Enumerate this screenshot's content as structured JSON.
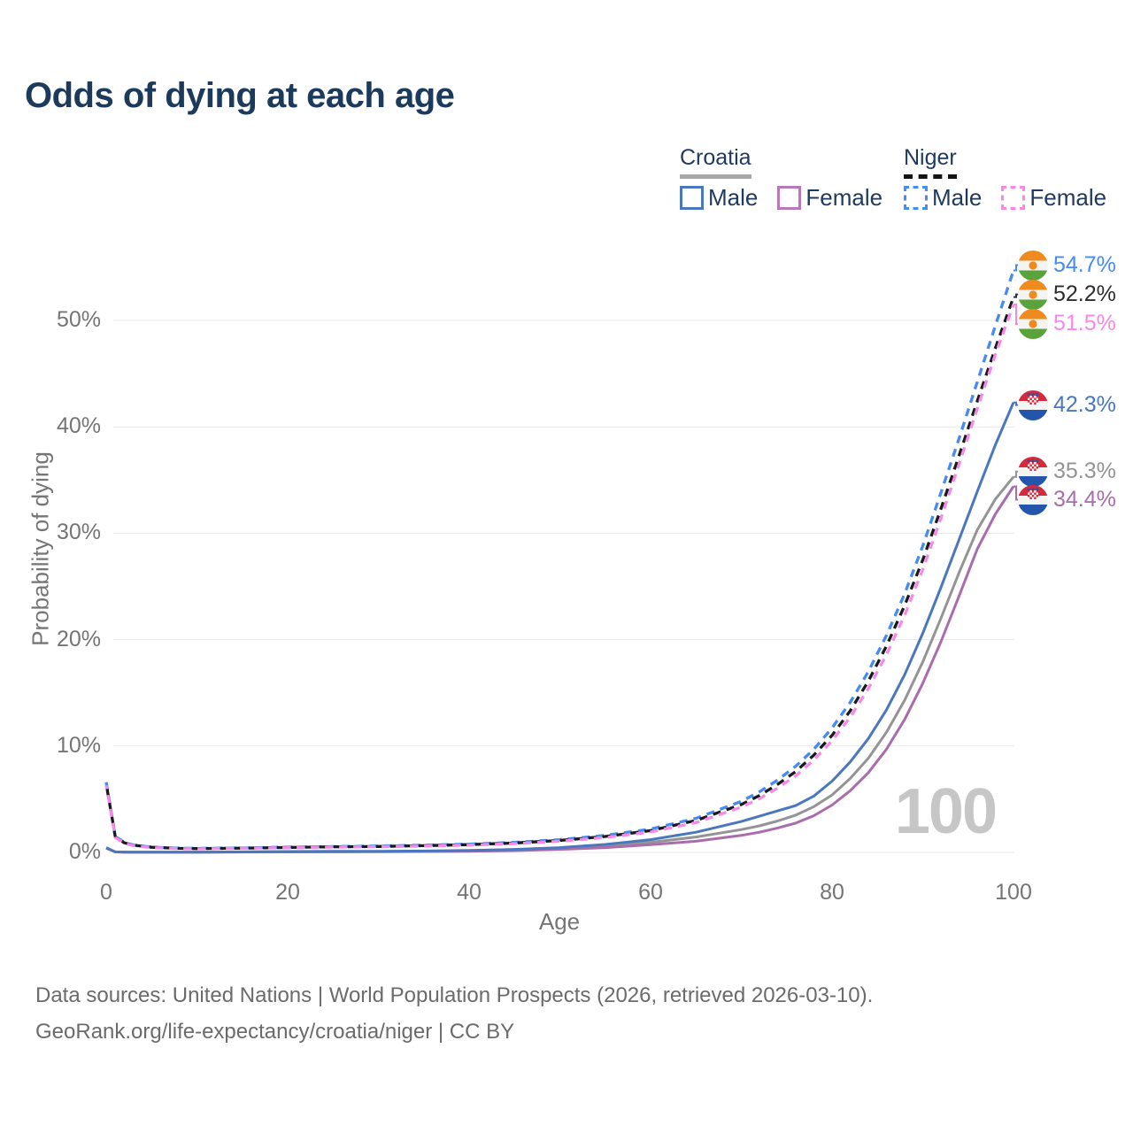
{
  "title": "Odds of dying at each age",
  "watermark": "100",
  "legend": {
    "groups": [
      {
        "name": "Croatia",
        "line_style": "solid",
        "line_color": "#a8a8a8",
        "items": [
          {
            "label": "Male",
            "color": "#4a77bd"
          },
          {
            "label": "Female",
            "color": "#b679b9"
          }
        ]
      },
      {
        "name": "Niger",
        "line_style": "dashed",
        "line_color": "#141414",
        "items": [
          {
            "label": "Male",
            "color": "#468af2"
          },
          {
            "label": "Female",
            "color": "#f788ea"
          }
        ]
      }
    ]
  },
  "end_labels": [
    {
      "series": 3,
      "label": "54.7%",
      "color": "#468af2",
      "flag": "niger"
    },
    {
      "series": 5,
      "label": "52.2%",
      "color": "#2d2d2d",
      "flag": "niger"
    },
    {
      "series": 4,
      "label": "51.5%",
      "color": "#f788ea",
      "flag": "niger"
    },
    {
      "series": 0,
      "label": "42.3%",
      "color": "#4a77bd",
      "flag": "croatia"
    },
    {
      "series": 2,
      "label": "35.3%",
      "color": "#949494",
      "flag": "croatia"
    },
    {
      "series": 1,
      "label": "34.4%",
      "color": "#a96cac",
      "flag": "croatia"
    }
  ],
  "footer": {
    "line1": "Data sources: United Nations | World Population Prospects (2026, retrieved 2026-03-10).",
    "line2": "GeoRank.org/life-expectancy/croatia/niger | CC BY"
  },
  "chart_data": {
    "type": "line",
    "title": "Odds of dying at each age",
    "xlabel": "Age",
    "ylabel": "Probability of dying",
    "xlim": [
      0,
      100
    ],
    "ylim_percent": [
      0,
      57
    ],
    "grid": true,
    "legend_position": "top-right",
    "x_ticks": [
      0,
      20,
      40,
      60,
      80,
      100
    ],
    "y_ticks": [
      {
        "v": 0,
        "label": "0%"
      },
      {
        "v": 10,
        "label": "10%"
      },
      {
        "v": 20,
        "label": "20%"
      },
      {
        "v": 30,
        "label": "30%"
      },
      {
        "v": 40,
        "label": "40%"
      },
      {
        "v": 50,
        "label": "50%"
      }
    ],
    "x": [
      0,
      1,
      2,
      3,
      5,
      8,
      10,
      15,
      20,
      25,
      30,
      35,
      40,
      45,
      50,
      55,
      60,
      65,
      70,
      72,
      74,
      76,
      78,
      80,
      82,
      84,
      86,
      88,
      90,
      92,
      94,
      96,
      98,
      100
    ],
    "series": [
      {
        "name": "Croatia Male",
        "country": "Croatia",
        "sex": "male",
        "style": "solid",
        "color": "#4a77bd",
        "end_value_percent": 42.3,
        "values": [
          0.45,
          0.05,
          0.03,
          0.025,
          0.02,
          0.02,
          0.025,
          0.05,
          0.08,
          0.1,
          0.11,
          0.13,
          0.18,
          0.28,
          0.45,
          0.75,
          1.2,
          1.9,
          2.9,
          3.4,
          3.9,
          4.4,
          5.3,
          6.7,
          8.5,
          10.7,
          13.4,
          16.7,
          20.6,
          24.9,
          29.4,
          33.9,
          38.3,
          42.3
        ]
      },
      {
        "name": "Croatia Female",
        "country": "Croatia",
        "sex": "female",
        "style": "solid",
        "color": "#a96cac",
        "end_value_percent": 34.4,
        "values": [
          0.4,
          0.04,
          0.025,
          0.02,
          0.015,
          0.015,
          0.018,
          0.03,
          0.04,
          0.05,
          0.06,
          0.08,
          0.11,
          0.17,
          0.28,
          0.45,
          0.72,
          1.05,
          1.6,
          1.9,
          2.3,
          2.75,
          3.45,
          4.45,
          5.8,
          7.5,
          9.7,
          12.5,
          15.9,
          19.8,
          24.1,
          28.5,
          31.8,
          34.4
        ]
      },
      {
        "name": "Croatia",
        "country": "Croatia",
        "sex": "both",
        "style": "solid",
        "color": "#949494",
        "end_value_percent": 35.3,
        "values": [
          0.42,
          0.045,
          0.028,
          0.022,
          0.018,
          0.018,
          0.02,
          0.04,
          0.06,
          0.075,
          0.085,
          0.1,
          0.14,
          0.22,
          0.36,
          0.6,
          0.95,
          1.45,
          2.15,
          2.5,
          2.95,
          3.5,
          4.3,
          5.4,
          6.95,
          8.85,
          11.3,
          14.3,
          17.9,
          22.0,
          26.3,
          30.3,
          33.2,
          35.3
        ]
      },
      {
        "name": "Niger Male",
        "country": "Niger",
        "sex": "male",
        "style": "dashed",
        "color": "#468af2",
        "end_value_percent": 54.7,
        "values": [
          6.6,
          1.5,
          0.95,
          0.7,
          0.5,
          0.4,
          0.38,
          0.42,
          0.5,
          0.55,
          0.6,
          0.68,
          0.78,
          0.95,
          1.2,
          1.6,
          2.2,
          3.2,
          4.8,
          5.7,
          6.8,
          8.1,
          9.7,
          11.7,
          14.1,
          17.0,
          20.4,
          24.3,
          28.8,
          33.8,
          38.9,
          44.2,
          49.5,
          54.7
        ]
      },
      {
        "name": "Niger Female",
        "country": "Niger",
        "sex": "female",
        "style": "dashed",
        "color": "#f788ea",
        "end_value_percent": 51.5,
        "values": [
          6.3,
          1.4,
          0.85,
          0.63,
          0.45,
          0.36,
          0.34,
          0.38,
          0.44,
          0.49,
          0.53,
          0.59,
          0.68,
          0.82,
          1.05,
          1.4,
          1.92,
          2.8,
          4.25,
          5.05,
          6.05,
          7.2,
          8.7,
          10.5,
          12.7,
          15.4,
          18.6,
          22.3,
          26.6,
          31.4,
          36.5,
          41.7,
          46.8,
          51.5
        ]
      },
      {
        "name": "Niger",
        "country": "Niger",
        "sex": "both",
        "style": "dashed",
        "color": "#1a1a1a",
        "end_value_percent": 52.2,
        "values": [
          6.45,
          1.45,
          0.9,
          0.67,
          0.48,
          0.38,
          0.36,
          0.4,
          0.47,
          0.52,
          0.56,
          0.63,
          0.73,
          0.88,
          1.12,
          1.5,
          2.05,
          3.0,
          4.5,
          5.35,
          6.4,
          7.6,
          9.15,
          11.0,
          13.3,
          16.1,
          19.4,
          23.2,
          27.5,
          32.3,
          37.3,
          42.4,
          47.4,
          52.2
        ]
      }
    ]
  }
}
